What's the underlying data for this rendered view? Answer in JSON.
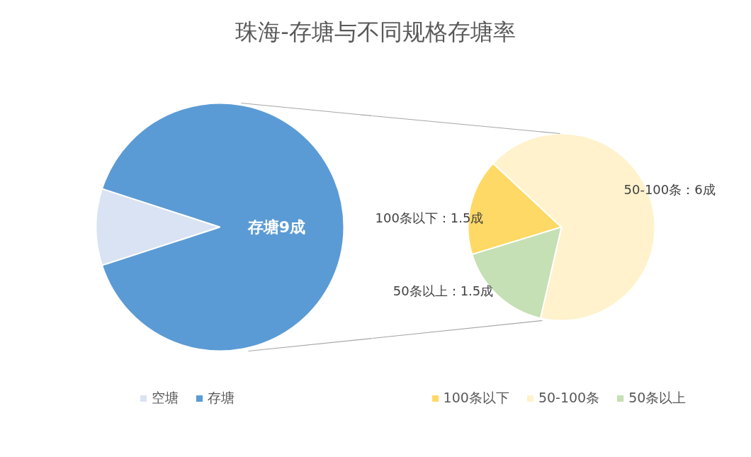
{
  "chart_data": [
    {
      "type": "pie",
      "title": "珠海-存塘与不同规格存塘率",
      "categories": [
        "空塘",
        "存塘"
      ],
      "values": [
        1,
        9
      ],
      "colors": [
        "#dae3f3",
        "#5b9bd5"
      ],
      "value_labels": [
        null,
        "存塘9成"
      ],
      "legend": "bottom"
    },
    {
      "type": "pie",
      "categories": [
        "100条以下",
        "50-100条",
        "50条以上"
      ],
      "values": [
        1.5,
        6,
        1.5
      ],
      "colors": [
        "#ffd966",
        "#fff2cc",
        "#c5e0b4"
      ],
      "value_labels": [
        "100条以下：1.5成",
        "50-100条：6成",
        "50条以上：1.5成"
      ],
      "legend": "bottom"
    }
  ]
}
